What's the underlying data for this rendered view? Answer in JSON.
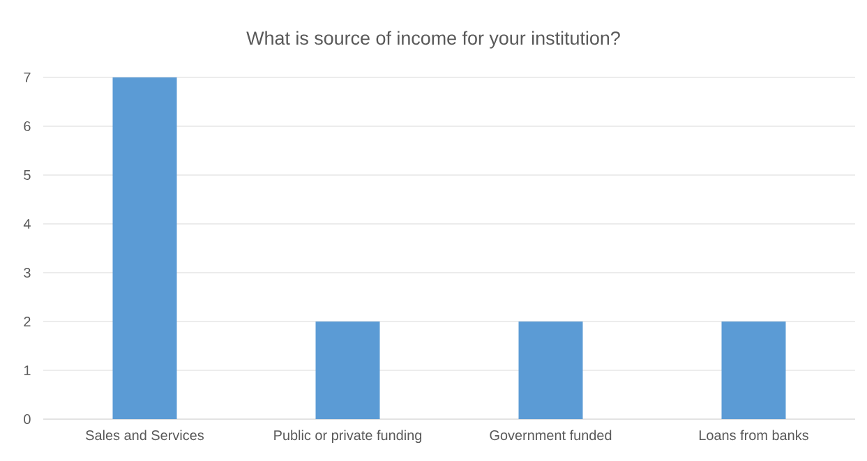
{
  "chart_data": {
    "type": "bar",
    "title": "What is source of income for your institution?",
    "categories": [
      "Sales and Services",
      "Public or private funding",
      "Government funded",
      "Loans from banks"
    ],
    "values": [
      7,
      2,
      2,
      2
    ],
    "color": "#5b9bd5",
    "ylim": [
      0,
      7
    ],
    "yticks": [
      0,
      1,
      2,
      3,
      4,
      5,
      6,
      7
    ],
    "grid": "y"
  }
}
